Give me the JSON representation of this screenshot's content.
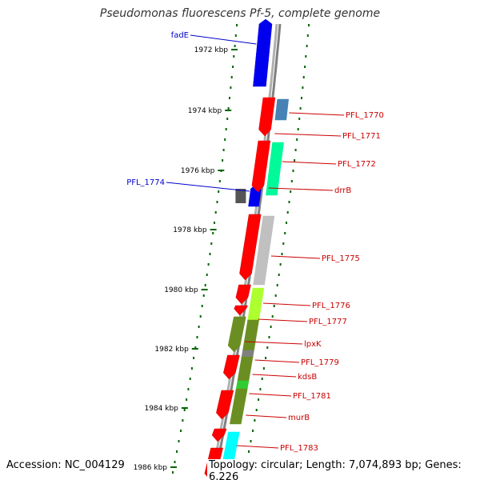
{
  "title": "Pseudomonas fluorescens Pf-5, complete genome",
  "footer": {
    "accession": "Accession: NC_004129",
    "topology": "Topology: circular; Length: 7,074,893 bp; Genes: 6,226"
  },
  "colors": {
    "forward_label": "#0000cc",
    "reverse_label": "#cc0000",
    "backbone": "#808080",
    "tick": "#006600"
  },
  "ticks": [
    "1972 kbp",
    "1974 kbp",
    "1976 kbp",
    "1978 kbp",
    "1980 kbp",
    "1982 kbp",
    "1984 kbp",
    "1986 kbp"
  ],
  "genes": [
    {
      "label": "fadE",
      "strand": "forward",
      "color": "#0000ee"
    },
    {
      "label": "PFL_1770",
      "strand": "reverse",
      "color": "#4682b4"
    },
    {
      "label": "PFL_1771",
      "strand": "reverse",
      "color": "#ff0000"
    },
    {
      "label": "PFL_1772",
      "strand": "reverse",
      "color": "#00fa9a"
    },
    {
      "label": "PFL_1774",
      "strand": "forward",
      "color": "#0000ee"
    },
    {
      "label": "drrB",
      "strand": "reverse",
      "color": "#ff0000"
    },
    {
      "label": "PFL_1775",
      "strand": "reverse",
      "color": "#c0c0c0"
    },
    {
      "label": "PFL_1776",
      "strand": "reverse",
      "color": "#adff2f"
    },
    {
      "label": "PFL_1777",
      "strand": "reverse",
      "color": "#6b8e23"
    },
    {
      "label": "lpxK",
      "strand": "reverse",
      "color": "#6b8e23"
    },
    {
      "label": "PFL_1779",
      "strand": "reverse",
      "color": "#808080"
    },
    {
      "label": "kdsB",
      "strand": "reverse",
      "color": "#6b8e23"
    },
    {
      "label": "PFL_1781",
      "strand": "reverse",
      "color": "#32cd32"
    },
    {
      "label": "murB",
      "strand": "reverse",
      "color": "#6b8e23"
    },
    {
      "label": "PFL_1783",
      "strand": "reverse",
      "color": "#00ffff"
    }
  ]
}
